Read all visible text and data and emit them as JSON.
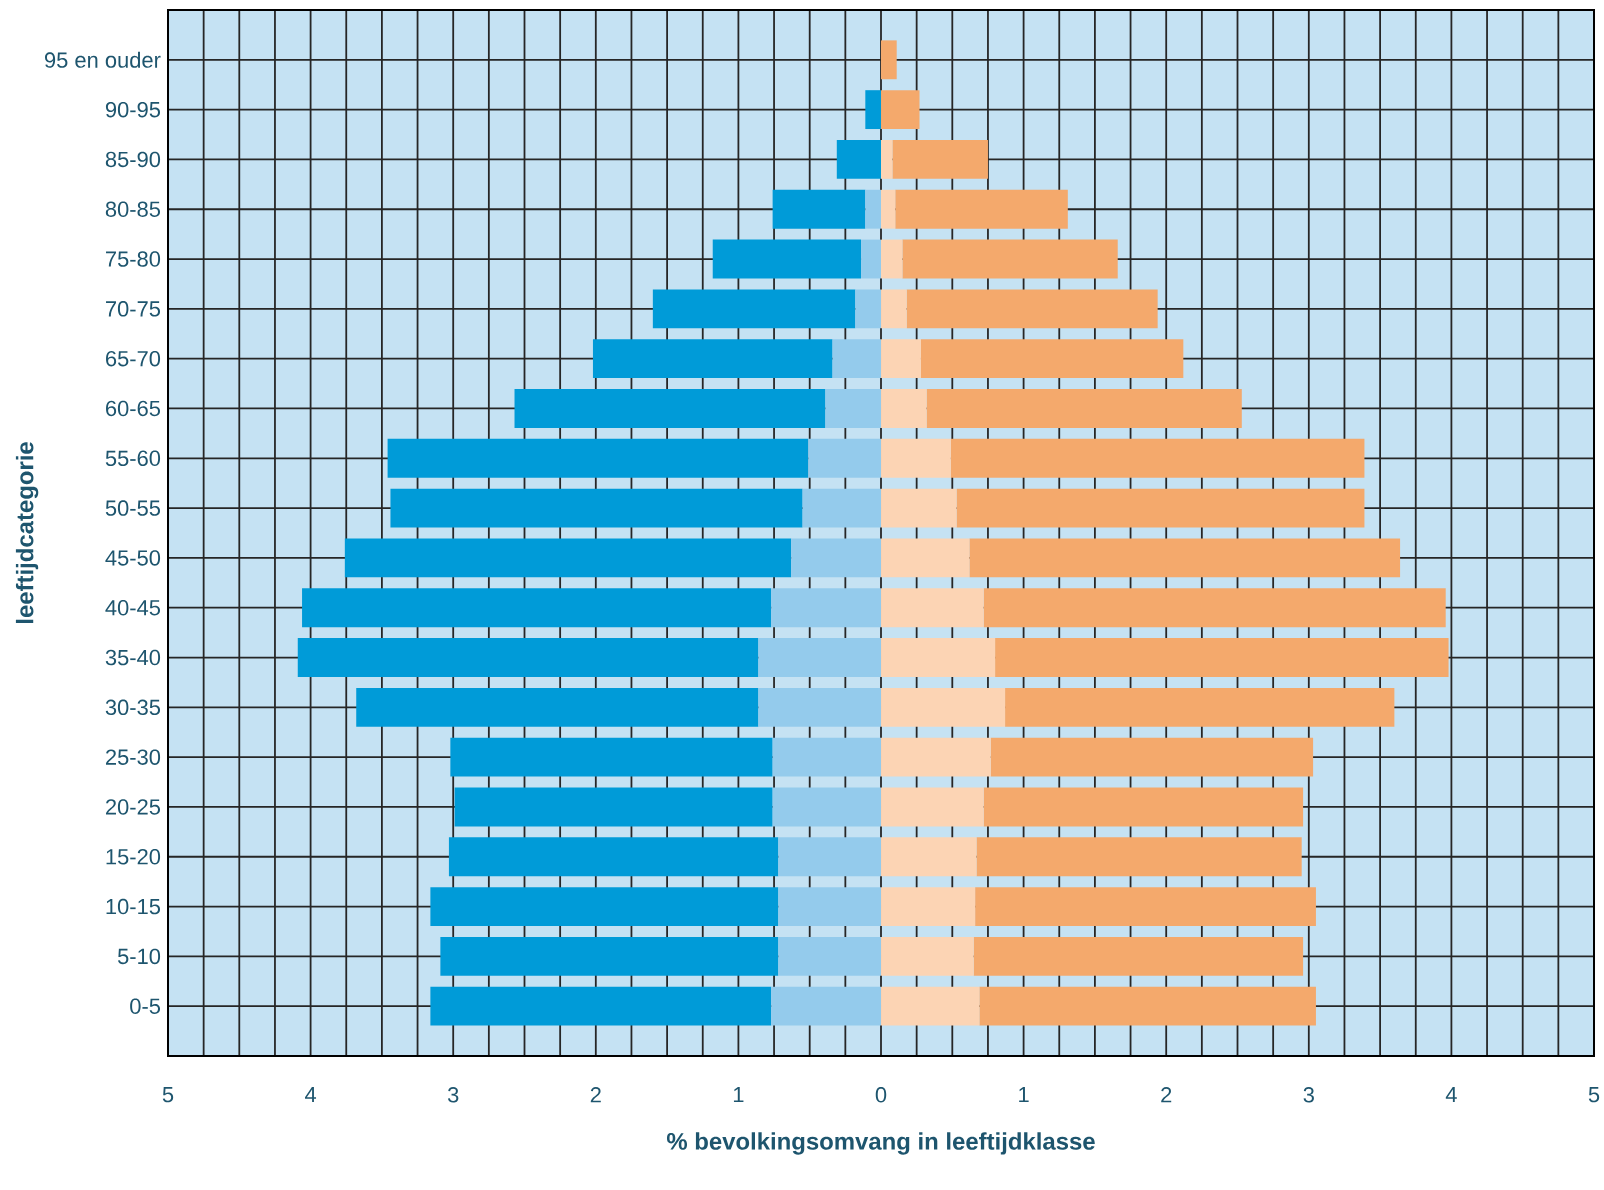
{
  "chart_data": {
    "type": "bar",
    "orientation": "horizontal",
    "stacked": true,
    "grid": true,
    "xlabel": "% bevolkingsomvang in leeftijdklasse",
    "ylabel": "leeftijdcategorie",
    "categories": [
      "95 en ouder",
      "90-95",
      "85-90",
      "80-85",
      "75-80",
      "70-75",
      "65-70",
      "60-65",
      "55-60",
      "50-55",
      "45-50",
      "40-45",
      "35-40",
      "30-35",
      "25-30",
      "20-25",
      "15-20",
      "10-15",
      "5-10",
      "0-5"
    ],
    "xlim": [
      -5,
      5
    ],
    "xticks": [
      {
        "value": -5,
        "label": "5"
      },
      {
        "value": -4.75,
        "label": null
      },
      {
        "value": -4.5,
        "label": null
      },
      {
        "value": -4.25,
        "label": null
      },
      {
        "value": -4,
        "label": "4"
      },
      {
        "value": -3.75,
        "label": null
      },
      {
        "value": -3.5,
        "label": null
      },
      {
        "value": -3.25,
        "label": null
      },
      {
        "value": -3,
        "label": "3"
      },
      {
        "value": -2.75,
        "label": null
      },
      {
        "value": -2.5,
        "label": null
      },
      {
        "value": -2.25,
        "label": null
      },
      {
        "value": -2,
        "label": "2"
      },
      {
        "value": -1.75,
        "label": null
      },
      {
        "value": -1.5,
        "label": null
      },
      {
        "value": -1.25,
        "label": null
      },
      {
        "value": -1,
        "label": "1"
      },
      {
        "value": -0.75,
        "label": null
      },
      {
        "value": -0.5,
        "label": null
      },
      {
        "value": -0.25,
        "label": null
      },
      0,
      {
        "value": 0.25,
        "label": null
      },
      {
        "value": 0.5,
        "label": null
      },
      {
        "value": 0.75,
        "label": null
      },
      1,
      {
        "value": 1.25,
        "label": null
      },
      {
        "value": 1.5,
        "label": null
      },
      {
        "value": 1.75,
        "label": null
      },
      2,
      {
        "value": 2.25,
        "label": null
      },
      {
        "value": 2.5,
        "label": null
      },
      {
        "value": 2.75,
        "label": null
      },
      3,
      {
        "value": 3.25,
        "label": null
      },
      {
        "value": 3.5,
        "label": null
      },
      {
        "value": 3.75,
        "label": null
      },
      4,
      {
        "value": 4.25,
        "label": null
      },
      {
        "value": 4.5,
        "label": null
      },
      {
        "value": 4.75,
        "label": null
      },
      5
    ],
    "series": [
      {
        "color": "#94cbec",
        "values": [
          0,
          0,
          0,
          -0.11,
          -0.14,
          -0.18,
          -0.34,
          -0.39,
          -0.51,
          -0.55,
          -0.63,
          -0.77,
          -0.86,
          -0.86,
          -0.76,
          -0.76,
          -0.72,
          -0.72,
          -0.72,
          -0.77
        ]
      },
      {
        "color": "#009bd8",
        "values": [
          0,
          -0.11,
          -0.31,
          -0.65,
          -1.04,
          -1.42,
          -1.68,
          -2.18,
          -2.95,
          -2.89,
          -3.13,
          -3.29,
          -3.23,
          -2.82,
          -2.26,
          -2.23,
          -2.31,
          -2.44,
          -2.37,
          -2.39
        ]
      },
      {
        "color": "#fcd4b4",
        "values": [
          0,
          0,
          0.08,
          0.1,
          0.15,
          0.18,
          0.28,
          0.32,
          0.49,
          0.53,
          0.62,
          0.72,
          0.8,
          0.87,
          0.77,
          0.72,
          0.67,
          0.66,
          0.65,
          0.69
        ]
      },
      {
        "color": "#f4a96c",
        "values": [
          0.11,
          0.27,
          0.67,
          1.21,
          1.51,
          1.76,
          1.84,
          2.21,
          2.9,
          2.86,
          3.02,
          3.24,
          3.18,
          2.73,
          2.26,
          2.24,
          2.28,
          2.39,
          2.31,
          2.36
        ]
      }
    ]
  }
}
